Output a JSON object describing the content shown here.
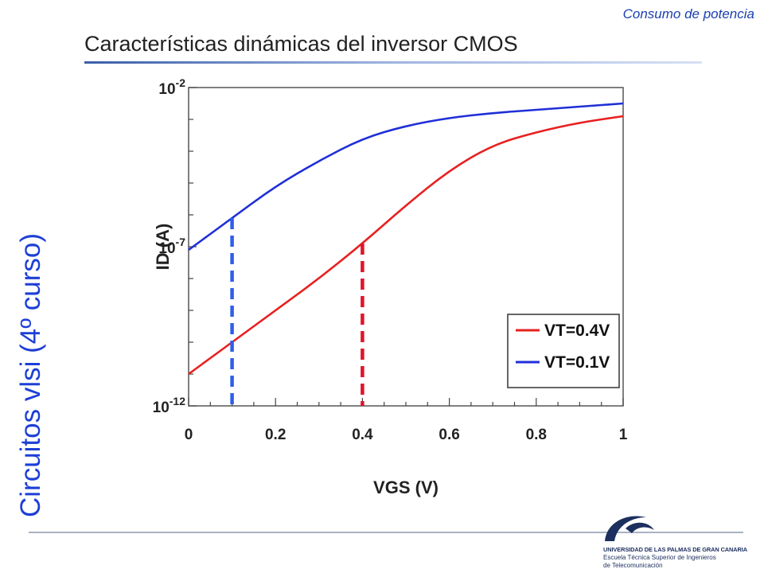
{
  "header": {
    "section": "Consumo de potencia",
    "title": "Características dinámicas del inversor CMOS"
  },
  "side_label": "Circuitos vlsi (4º curso)",
  "logo": {
    "line1": "UNIVERSIDAD DE LAS PALMAS DE GRAN CANARIA",
    "line2": "Escuela Técnica Superior de Ingenieros",
    "line3": "de Telecomunicación"
  },
  "colors": {
    "red": "#e82020",
    "blue": "#1f2fd8",
    "marker_red": "#e0142a",
    "marker_blue": "#2f5ee8",
    "title_blue": "#1d3fd6"
  },
  "chart_data": {
    "type": "line",
    "xlabel": "VGS (V)",
    "ylabel": "ID (A)",
    "xlim": [
      0,
      1
    ],
    "ylim_exp": [
      -12,
      -2
    ],
    "y_scale": "log",
    "x_ticks": [
      0,
      0.2,
      0.4,
      0.6,
      0.8,
      1
    ],
    "x_tick_labels": [
      "0",
      "0.2",
      "0.4",
      "0.6",
      "0.8",
      "1"
    ],
    "y_tick_labels": [
      {
        "base": "10",
        "exp": "-2",
        "value_exp": -2
      },
      {
        "base": "10",
        "exp": "-7",
        "value_exp": -7
      },
      {
        "base": "10",
        "exp": "-12",
        "value_exp": -12
      }
    ],
    "legend_position": "bottom-right",
    "series": [
      {
        "name": "VT=0.4V",
        "color": "#e82020",
        "points": [
          [
            0,
            -11.0
          ],
          [
            0.1,
            -10.0
          ],
          [
            0.2,
            -9.0
          ],
          [
            0.3,
            -8.0
          ],
          [
            0.4,
            -6.9
          ],
          [
            0.5,
            -5.7
          ],
          [
            0.6,
            -4.6
          ],
          [
            0.7,
            -3.8
          ],
          [
            0.8,
            -3.4
          ],
          [
            0.9,
            -3.1
          ],
          [
            1.0,
            -2.9
          ]
        ]
      },
      {
        "name": "VT=0.1V",
        "color": "#1f2fd8",
        "points": [
          [
            0,
            -7.1
          ],
          [
            0.1,
            -6.1
          ],
          [
            0.2,
            -5.1
          ],
          [
            0.3,
            -4.3
          ],
          [
            0.4,
            -3.6
          ],
          [
            0.5,
            -3.2
          ],
          [
            0.6,
            -2.95
          ],
          [
            0.7,
            -2.8
          ],
          [
            0.8,
            -2.7
          ],
          [
            0.9,
            -2.6
          ],
          [
            1.0,
            -2.5
          ]
        ]
      }
    ],
    "markers": [
      {
        "x": 0.1,
        "y_top": -6.1,
        "color": "#2f5ee8"
      },
      {
        "x": 0.4,
        "y_top": -6.9,
        "color": "#e0142a"
      }
    ]
  }
}
